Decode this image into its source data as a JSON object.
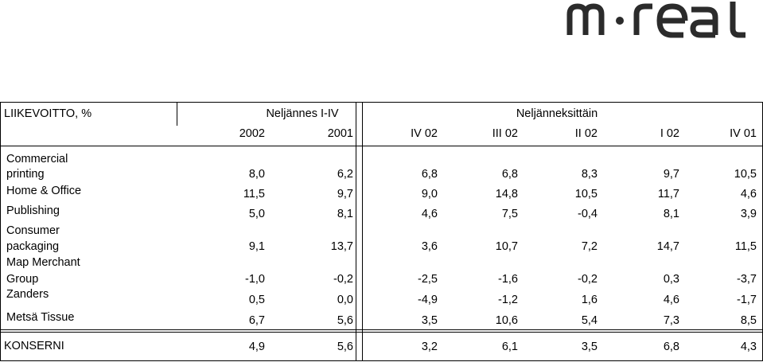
{
  "logo_text": "m·real",
  "header": {
    "title": "LIIKEVOITTO, %",
    "group1": "Neljännes I-IV",
    "group2": "Neljänneksittäin",
    "columns": [
      "2002",
      "2001",
      "IV 02",
      "III 02",
      "II 02",
      "I 02",
      "IV 01"
    ]
  },
  "rows": [
    {
      "label1": "Commercial",
      "label2": "printing",
      "values": [
        "8,0",
        "6,2",
        "6,8",
        "6,8",
        "8,3",
        "9,7",
        "10,5"
      ]
    },
    {
      "label1": "Home & Office",
      "label2": "",
      "values": [
        "11,5",
        "9,7",
        "9,0",
        "14,8",
        "10,5",
        "11,7",
        "4,6"
      ]
    },
    {
      "label1": "Publishing",
      "label2": "",
      "values": [
        "5,0",
        "8,1",
        "4,6",
        "7,5",
        "-0,4",
        "8,1",
        "3,9"
      ]
    },
    {
      "label1": "Consumer",
      "label2": "packaging",
      "values": [
        "9,1",
        "13,7",
        "3,6",
        "10,7",
        "7,2",
        "14,7",
        "11,5"
      ]
    },
    {
      "label1": "Map Merchant",
      "label2": "Group",
      "values": [
        "-1,0",
        "-0,2",
        "-2,5",
        "-1,6",
        "-0,2",
        "0,3",
        "-3,7"
      ]
    },
    {
      "label1": "Zanders",
      "label2": "",
      "values": [
        "0,5",
        "0,0",
        "-4,9",
        "-1,2",
        "1,6",
        "4,6",
        "-1,7"
      ]
    },
    {
      "label1": "Metsä Tissue",
      "label2": "",
      "values": [
        "6,7",
        "5,6",
        "3,5",
        "10,6",
        "5,4",
        "7,3",
        "8,5"
      ]
    }
  ],
  "total": {
    "label": "KONSERNI",
    "values": [
      "4,9",
      "5,6",
      "3,2",
      "6,1",
      "3,5",
      "6,8",
      "4,3"
    ]
  }
}
